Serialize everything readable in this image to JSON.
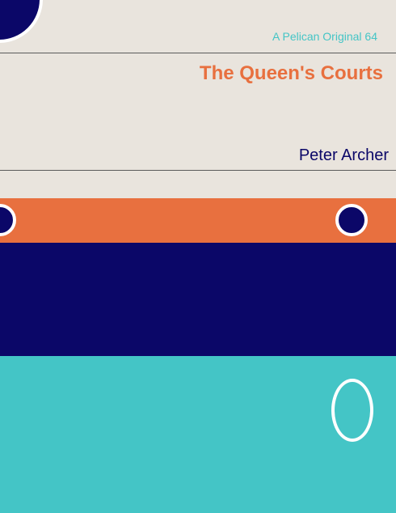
{
  "cover": {
    "series_label": "A Pelican Original 64",
    "title": "The Queen's Courts",
    "author": "Peter Archer"
  },
  "colors": {
    "cream": "#e9e4dd",
    "orange": "#e8703f",
    "navy": "#0b0768",
    "teal": "#44c5c6",
    "white": "#ffffff"
  }
}
